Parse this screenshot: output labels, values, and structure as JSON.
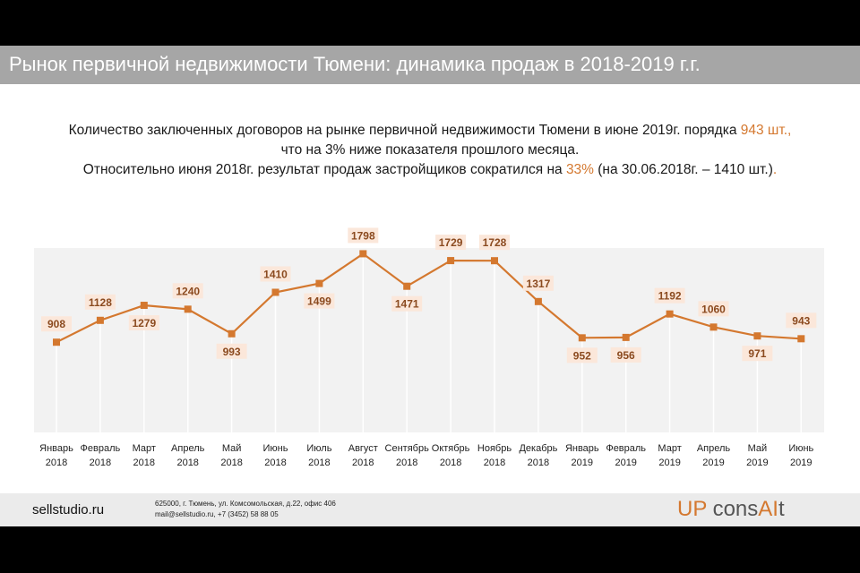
{
  "title": "Рынок первичной недвижимости Тюмени: динамика продаж в 2018-2019 г.г.",
  "subtitle": {
    "line1_pre": "Количество заключенных договоров на рынке первичной недвижимости Тюмени в июне 2019г. порядка ",
    "line1_hl": "943 шт.,",
    "line2": "что на 3% ниже показателя прошлого месяца.",
    "line3_pre": "Относительно июня 2018г. результат продаж застройщиков сократился на ",
    "line3_hl": "33%",
    "line3_post": " (на 30.06.2018г. – 1410 шт.)",
    "line3_end": "."
  },
  "colors": {
    "line": "#d4782f",
    "label_bg": "#fbe7da",
    "label_text": "#8b4a1f",
    "grid": "#e4e4e4",
    "plot_bg": "#f2f2f2",
    "accent": "#d4782f"
  },
  "chart_data": {
    "type": "line",
    "categories": [
      [
        "Январь",
        "2018"
      ],
      [
        "Февраль",
        "2018"
      ],
      [
        "Март",
        "2018"
      ],
      [
        "Апрель",
        "2018"
      ],
      [
        "Май",
        "2018"
      ],
      [
        "Июнь",
        "2018"
      ],
      [
        "Июль",
        "2018"
      ],
      [
        "Август",
        "2018"
      ],
      [
        "Сентябрь",
        "2018"
      ],
      [
        "Октябрь",
        "2018"
      ],
      [
        "Ноябрь",
        "2018"
      ],
      [
        "Декабрь",
        "2018"
      ],
      [
        "Январь",
        "2019"
      ],
      [
        "Февраль",
        "2019"
      ],
      [
        "Март",
        "2019"
      ],
      [
        "Апрель",
        "2019"
      ],
      [
        "Май",
        "2019"
      ],
      [
        "Июнь",
        "2019"
      ]
    ],
    "values": [
      908,
      1128,
      1279,
      1240,
      993,
      1410,
      1499,
      1798,
      1471,
      1729,
      1728,
      1317,
      952,
      956,
      1192,
      1060,
      971,
      943
    ],
    "label_position": [
      "above",
      "above",
      "below",
      "above",
      "below",
      "above",
      "below",
      "above",
      "below",
      "above",
      "above",
      "above",
      "below",
      "below",
      "above",
      "above",
      "below",
      "above"
    ],
    "ylim": [
      0,
      2000
    ],
    "grid": "vertical",
    "legend": "none"
  },
  "footer": {
    "site": "sellstudio.ru",
    "address_line1": "625000, г. Тюмень, ул. Комсомольская, д.22, офис 406",
    "address_line2": "mail@sellstudio.ru, +7 (3452) 58 88 05",
    "logo_part1": "UP",
    "logo_part2": " cons",
    "logo_part3": "AI",
    "logo_part4": "t"
  }
}
